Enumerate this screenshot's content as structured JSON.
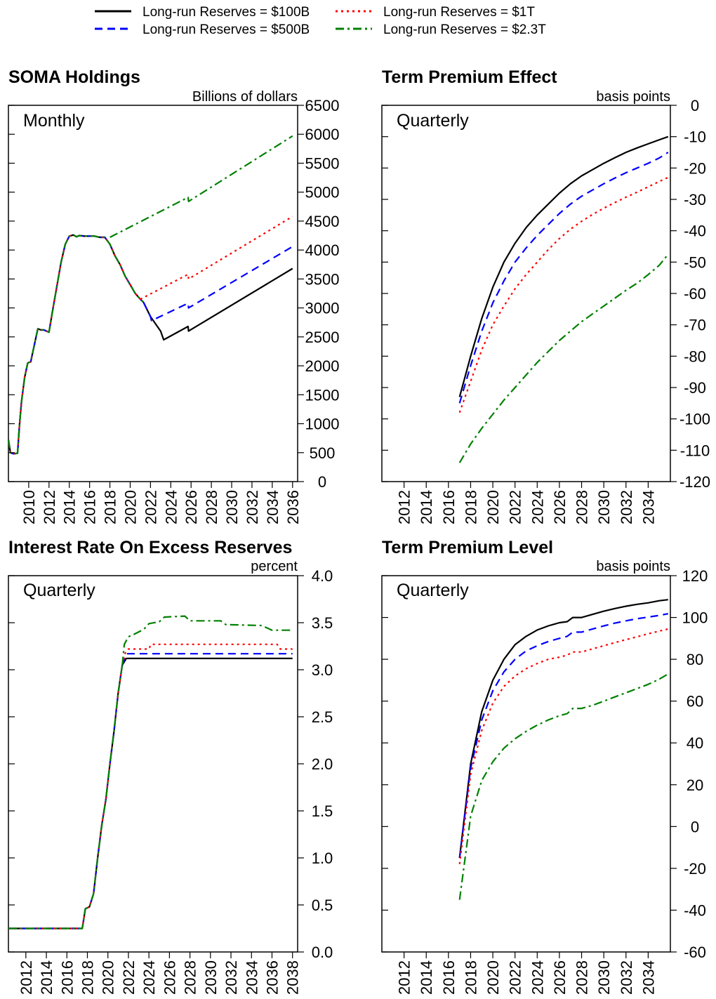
{
  "legend": [
    {
      "name": "Long-run Reserves = $100B",
      "color": "#000000",
      "dash": "solid"
    },
    {
      "name": "Long-run Reserves = $500B",
      "color": "#0000ff",
      "dash": "dashed"
    },
    {
      "name": "Long-run Reserves = $1T",
      "color": "#ff0000",
      "dash": "dotted"
    },
    {
      "name": "Long-run Reserves = $2.3T",
      "color": "#008000",
      "dash": "dashdot"
    }
  ],
  "chart_data": [
    {
      "type": "line",
      "title": "SOMA Holdings",
      "ylabel": "Billions of dollars",
      "frequency_label": "Monthly",
      "xlim": [
        2008,
        2036.5
      ],
      "ylim": [
        0,
        6500
      ],
      "xticks": [
        "2010",
        "2012",
        "2014",
        "2016",
        "2018",
        "2020",
        "2022",
        "2024",
        "2026",
        "2028",
        "2030",
        "2032",
        "2034",
        "2036"
      ],
      "yticks": [
        "0",
        "500",
        "1000",
        "1500",
        "2000",
        "2500",
        "3000",
        "3500",
        "4000",
        "4500",
        "5000",
        "5500",
        "6000",
        "6500"
      ],
      "shared_history": {
        "x": [
          2008.0,
          2008.2,
          2008.5,
          2008.9,
          2009.1,
          2009.3,
          2009.6,
          2009.9,
          2010.2,
          2010.6,
          2010.9,
          2011.2,
          2011.5,
          2012.0,
          2012.4,
          2012.8,
          2013.2,
          2013.6,
          2014.0,
          2014.4,
          2014.7,
          2015.0,
          2015.5,
          2016.0,
          2016.5,
          2017.0,
          2017.5,
          2018.0,
          2018.5,
          2019.0,
          2019.5,
          2020.0,
          2020.5,
          2021.0,
          2021.3
        ],
        "y": [
          720,
          500,
          480,
          490,
          1000,
          1400,
          1800,
          2050,
          2070,
          2400,
          2640,
          2620,
          2620,
          2580,
          3000,
          3400,
          3800,
          4100,
          4240,
          4260,
          4230,
          4250,
          4240,
          4240,
          4240,
          4220,
          4220,
          4100,
          3900,
          3750,
          3550,
          3400,
          3250,
          3150,
          3100
        ]
      },
      "series": [
        {
          "name": "Long-run Reserves = $100B",
          "x": [
            2021.3,
            2022.0,
            2023.0,
            2023.3,
            2025.7,
            2025.75,
            2036.0
          ],
          "y": [
            3100,
            2850,
            2600,
            2450,
            2680,
            2600,
            3680
          ]
        },
        {
          "name": "Long-run Reserves = $500B",
          "x": [
            2021.3,
            2022.0,
            2022.1,
            2025.7,
            2025.75,
            2036.0
          ],
          "y": [
            3100,
            2850,
            2780,
            3080,
            3000,
            4060
          ]
        },
        {
          "name": "Long-run Reserves = $1T",
          "x": [
            2021.0,
            2025.7,
            2025.75,
            2036.0
          ],
          "y": [
            3150,
            3580,
            3500,
            4580
          ]
        },
        {
          "name": "Long-run Reserves = $2.3T",
          "x": [
            2018.0,
            2025.7,
            2025.75,
            2036.0
          ],
          "y": [
            4220,
            4910,
            4840,
            5970
          ]
        }
      ]
    },
    {
      "type": "line",
      "title": "Term Premium Effect",
      "ylabel": "basis points",
      "frequency_label": "Quarterly",
      "xlim": [
        2010,
        2036
      ],
      "ylim": [
        -120,
        0
      ],
      "xticks": [
        "2012",
        "2014",
        "2016",
        "2018",
        "2020",
        "2022",
        "2024",
        "2026",
        "2028",
        "2030",
        "2032",
        "2034"
      ],
      "yticks": [
        "-120",
        "-110",
        "-100",
        "-90",
        "-80",
        "-70",
        "-60",
        "-50",
        "-40",
        "-30",
        "-20",
        "-10",
        "0"
      ],
      "series": [
        {
          "name": "Long-run Reserves = $100B",
          "x": [
            2017.0,
            2018.0,
            2019.0,
            2020.0,
            2021.0,
            2022.0,
            2023.0,
            2024.0,
            2025.0,
            2026.0,
            2027.0,
            2028.0,
            2029.0,
            2030.0,
            2031.0,
            2032.0,
            2033.0,
            2034.0,
            2035.0,
            2035.8
          ],
          "y": [
            -93,
            -80,
            -68,
            -58,
            -50,
            -44,
            -39,
            -35,
            -31.5,
            -28,
            -25,
            -22.5,
            -20.5,
            -18.5,
            -16.7,
            -15,
            -13.6,
            -12.3,
            -11,
            -10
          ]
        },
        {
          "name": "Long-run Reserves = $500B",
          "x": [
            2017.0,
            2018.0,
            2019.0,
            2020.0,
            2021.0,
            2022.0,
            2023.0,
            2024.0,
            2025.0,
            2026.0,
            2027.0,
            2028.0,
            2029.0,
            2030.0,
            2031.0,
            2032.0,
            2033.0,
            2034.0,
            2035.0,
            2035.8
          ],
          "y": [
            -95,
            -83,
            -72,
            -63,
            -56,
            -50,
            -45.5,
            -41.5,
            -38,
            -34.5,
            -31.5,
            -29,
            -27,
            -25,
            -23.2,
            -21.5,
            -20,
            -18.5,
            -16.8,
            -15
          ]
        },
        {
          "name": "Long-run Reserves = $1T",
          "x": [
            2017.0,
            2018.0,
            2019.0,
            2020.0,
            2021.0,
            2022.0,
            2023.0,
            2024.0,
            2025.0,
            2026.0,
            2027.0,
            2028.0,
            2029.0,
            2030.0,
            2031.0,
            2032.0,
            2033.0,
            2034.0,
            2035.0,
            2035.8
          ],
          "y": [
            -98,
            -88,
            -78,
            -70,
            -64,
            -58.5,
            -54,
            -50,
            -46,
            -42.5,
            -39.5,
            -37,
            -34.8,
            -32.8,
            -31,
            -29.3,
            -27.7,
            -26,
            -24.3,
            -23
          ]
        },
        {
          "name": "Long-run Reserves = $2.3T",
          "x": [
            2017.0,
            2018.0,
            2019.0,
            2020.0,
            2021.0,
            2022.0,
            2023.0,
            2024.0,
            2025.0,
            2026.0,
            2027.0,
            2028.0,
            2029.0,
            2030.0,
            2031.0,
            2032.0,
            2033.0,
            2034.0,
            2035.0,
            2035.8
          ],
          "y": [
            -114,
            -108,
            -103,
            -98.5,
            -94,
            -90,
            -86,
            -82,
            -78.5,
            -75,
            -72,
            -69,
            -66.5,
            -64,
            -61.5,
            -59,
            -56.7,
            -54,
            -51,
            -47.5
          ]
        }
      ]
    },
    {
      "type": "line",
      "title": "Interest Rate On Excess Reserves",
      "ylabel": "percent",
      "frequency_label": "Quarterly",
      "xlim": [
        2010.3,
        2038.5
      ],
      "ylim": [
        0.0,
        4.0
      ],
      "xticks": [
        "2012",
        "2014",
        "2016",
        "2018",
        "2020",
        "2022",
        "2024",
        "2026",
        "2028",
        "2030",
        "2032",
        "2034",
        "2036",
        "2038"
      ],
      "yticks": [
        "0.0",
        "0.5",
        "1.0",
        "1.5",
        "2.0",
        "2.5",
        "3.0",
        "3.5",
        "4.0"
      ],
      "shared_history": {
        "x": [
          2010.3,
          2017.5,
          2017.8,
          2018.2,
          2018.6,
          2019.0,
          2019.4,
          2019.8,
          2020.2,
          2020.6,
          2021.0,
          2021.4
        ],
        "y": [
          0.25,
          0.25,
          0.46,
          0.48,
          0.62,
          1.0,
          1.35,
          1.62,
          2.0,
          2.35,
          2.75,
          3.05
        ]
      },
      "series": [
        {
          "name": "Long-run Reserves = $100B",
          "x": [
            2021.4,
            2021.8,
            2038.0
          ],
          "y": [
            3.05,
            3.12,
            3.12
          ]
        },
        {
          "name": "Long-run Reserves = $500B",
          "x": [
            2021.4,
            2021.8,
            2038.0
          ],
          "y": [
            3.05,
            3.17,
            3.17
          ]
        },
        {
          "name": "Long-run Reserves = $1T",
          "x": [
            2021.4,
            2021.7,
            2022.0,
            2024.0,
            2024.2,
            2036.5,
            2036.8,
            2038.0
          ],
          "y": [
            3.05,
            3.18,
            3.22,
            3.22,
            3.27,
            3.27,
            3.22,
            3.22
          ]
        },
        {
          "name": "Long-run Reserves = $2.3T",
          "x": [
            2021.4,
            2021.6,
            2022.0,
            2022.6,
            2023.5,
            2024.0,
            2025.0,
            2025.5,
            2027.5,
            2028.0,
            2031.0,
            2031.5,
            2035.0,
            2036.0,
            2038.0
          ],
          "y": [
            3.05,
            3.27,
            3.35,
            3.38,
            3.43,
            3.49,
            3.51,
            3.56,
            3.57,
            3.52,
            3.52,
            3.48,
            3.47,
            3.42,
            3.42
          ]
        }
      ]
    },
    {
      "type": "line",
      "title": "Term Premium Level",
      "ylabel": "basis points",
      "frequency_label": "Quarterly",
      "xlim": [
        2010,
        2036
      ],
      "ylim": [
        -60,
        120
      ],
      "xticks": [
        "2012",
        "2014",
        "2016",
        "2018",
        "2020",
        "2022",
        "2024",
        "2026",
        "2028",
        "2030",
        "2032",
        "2034"
      ],
      "yticks": [
        "-60",
        "-40",
        "-20",
        "0",
        "20",
        "40",
        "60",
        "80",
        "100",
        "120"
      ],
      "series": [
        {
          "name": "Long-run Reserves = $100B",
          "x": [
            2017.0,
            2018.0,
            2019.0,
            2020.0,
            2021.0,
            2022.0,
            2023.0,
            2024.0,
            2025.0,
            2026.0,
            2026.7,
            2027.2,
            2028.0,
            2029.0,
            2030.0,
            2031.0,
            2032.0,
            2033.0,
            2034.0,
            2035.0,
            2035.8
          ],
          "y": [
            -15,
            30,
            55,
            70,
            80,
            87,
            91,
            94,
            96,
            97.5,
            98,
            100,
            100,
            101.5,
            103,
            104.3,
            105.4,
            106.3,
            107,
            108,
            108.5
          ]
        },
        {
          "name": "Long-run Reserves = $500B",
          "x": [
            2017.0,
            2018.0,
            2019.0,
            2020.0,
            2021.0,
            2022.0,
            2023.0,
            2024.0,
            2025.0,
            2026.0,
            2026.7,
            2027.2,
            2028.0,
            2029.0,
            2030.0,
            2031.0,
            2032.0,
            2033.0,
            2034.0,
            2035.0,
            2035.8
          ],
          "y": [
            -15,
            28,
            51,
            65,
            74,
            80,
            84,
            86.5,
            88.5,
            90,
            91,
            93,
            93,
            94.5,
            96,
            97.3,
            98.4,
            99.4,
            100.2,
            101,
            101.8
          ]
        },
        {
          "name": "Long-run Reserves = $1T",
          "x": [
            2017.0,
            2018.0,
            2019.0,
            2020.0,
            2021.0,
            2022.0,
            2023.0,
            2024.0,
            2025.0,
            2026.0,
            2026.7,
            2027.2,
            2028.0,
            2029.0,
            2030.0,
            2031.0,
            2032.0,
            2033.0,
            2034.0,
            2035.0,
            2035.8
          ],
          "y": [
            -18,
            25,
            46,
            59,
            67,
            72,
            75.5,
            78,
            80,
            81,
            82,
            83.5,
            83.5,
            85,
            86.5,
            88,
            89.4,
            90.8,
            92.2,
            93.5,
            94.5
          ]
        },
        {
          "name": "Long-run Reserves = $2.3T",
          "x": [
            2017.0,
            2018.0,
            2019.0,
            2020.0,
            2021.0,
            2022.0,
            2023.0,
            2024.0,
            2025.0,
            2026.0,
            2026.7,
            2027.2,
            2028.0,
            2029.0,
            2030.0,
            2031.0,
            2032.0,
            2033.0,
            2034.0,
            2035.0,
            2035.8
          ],
          "y": [
            -35,
            5,
            22,
            31,
            37.5,
            42,
            45.5,
            48.5,
            51,
            53,
            54,
            56.5,
            56.5,
            58,
            60,
            62,
            64,
            66,
            68,
            70.5,
            73
          ]
        }
      ]
    }
  ]
}
